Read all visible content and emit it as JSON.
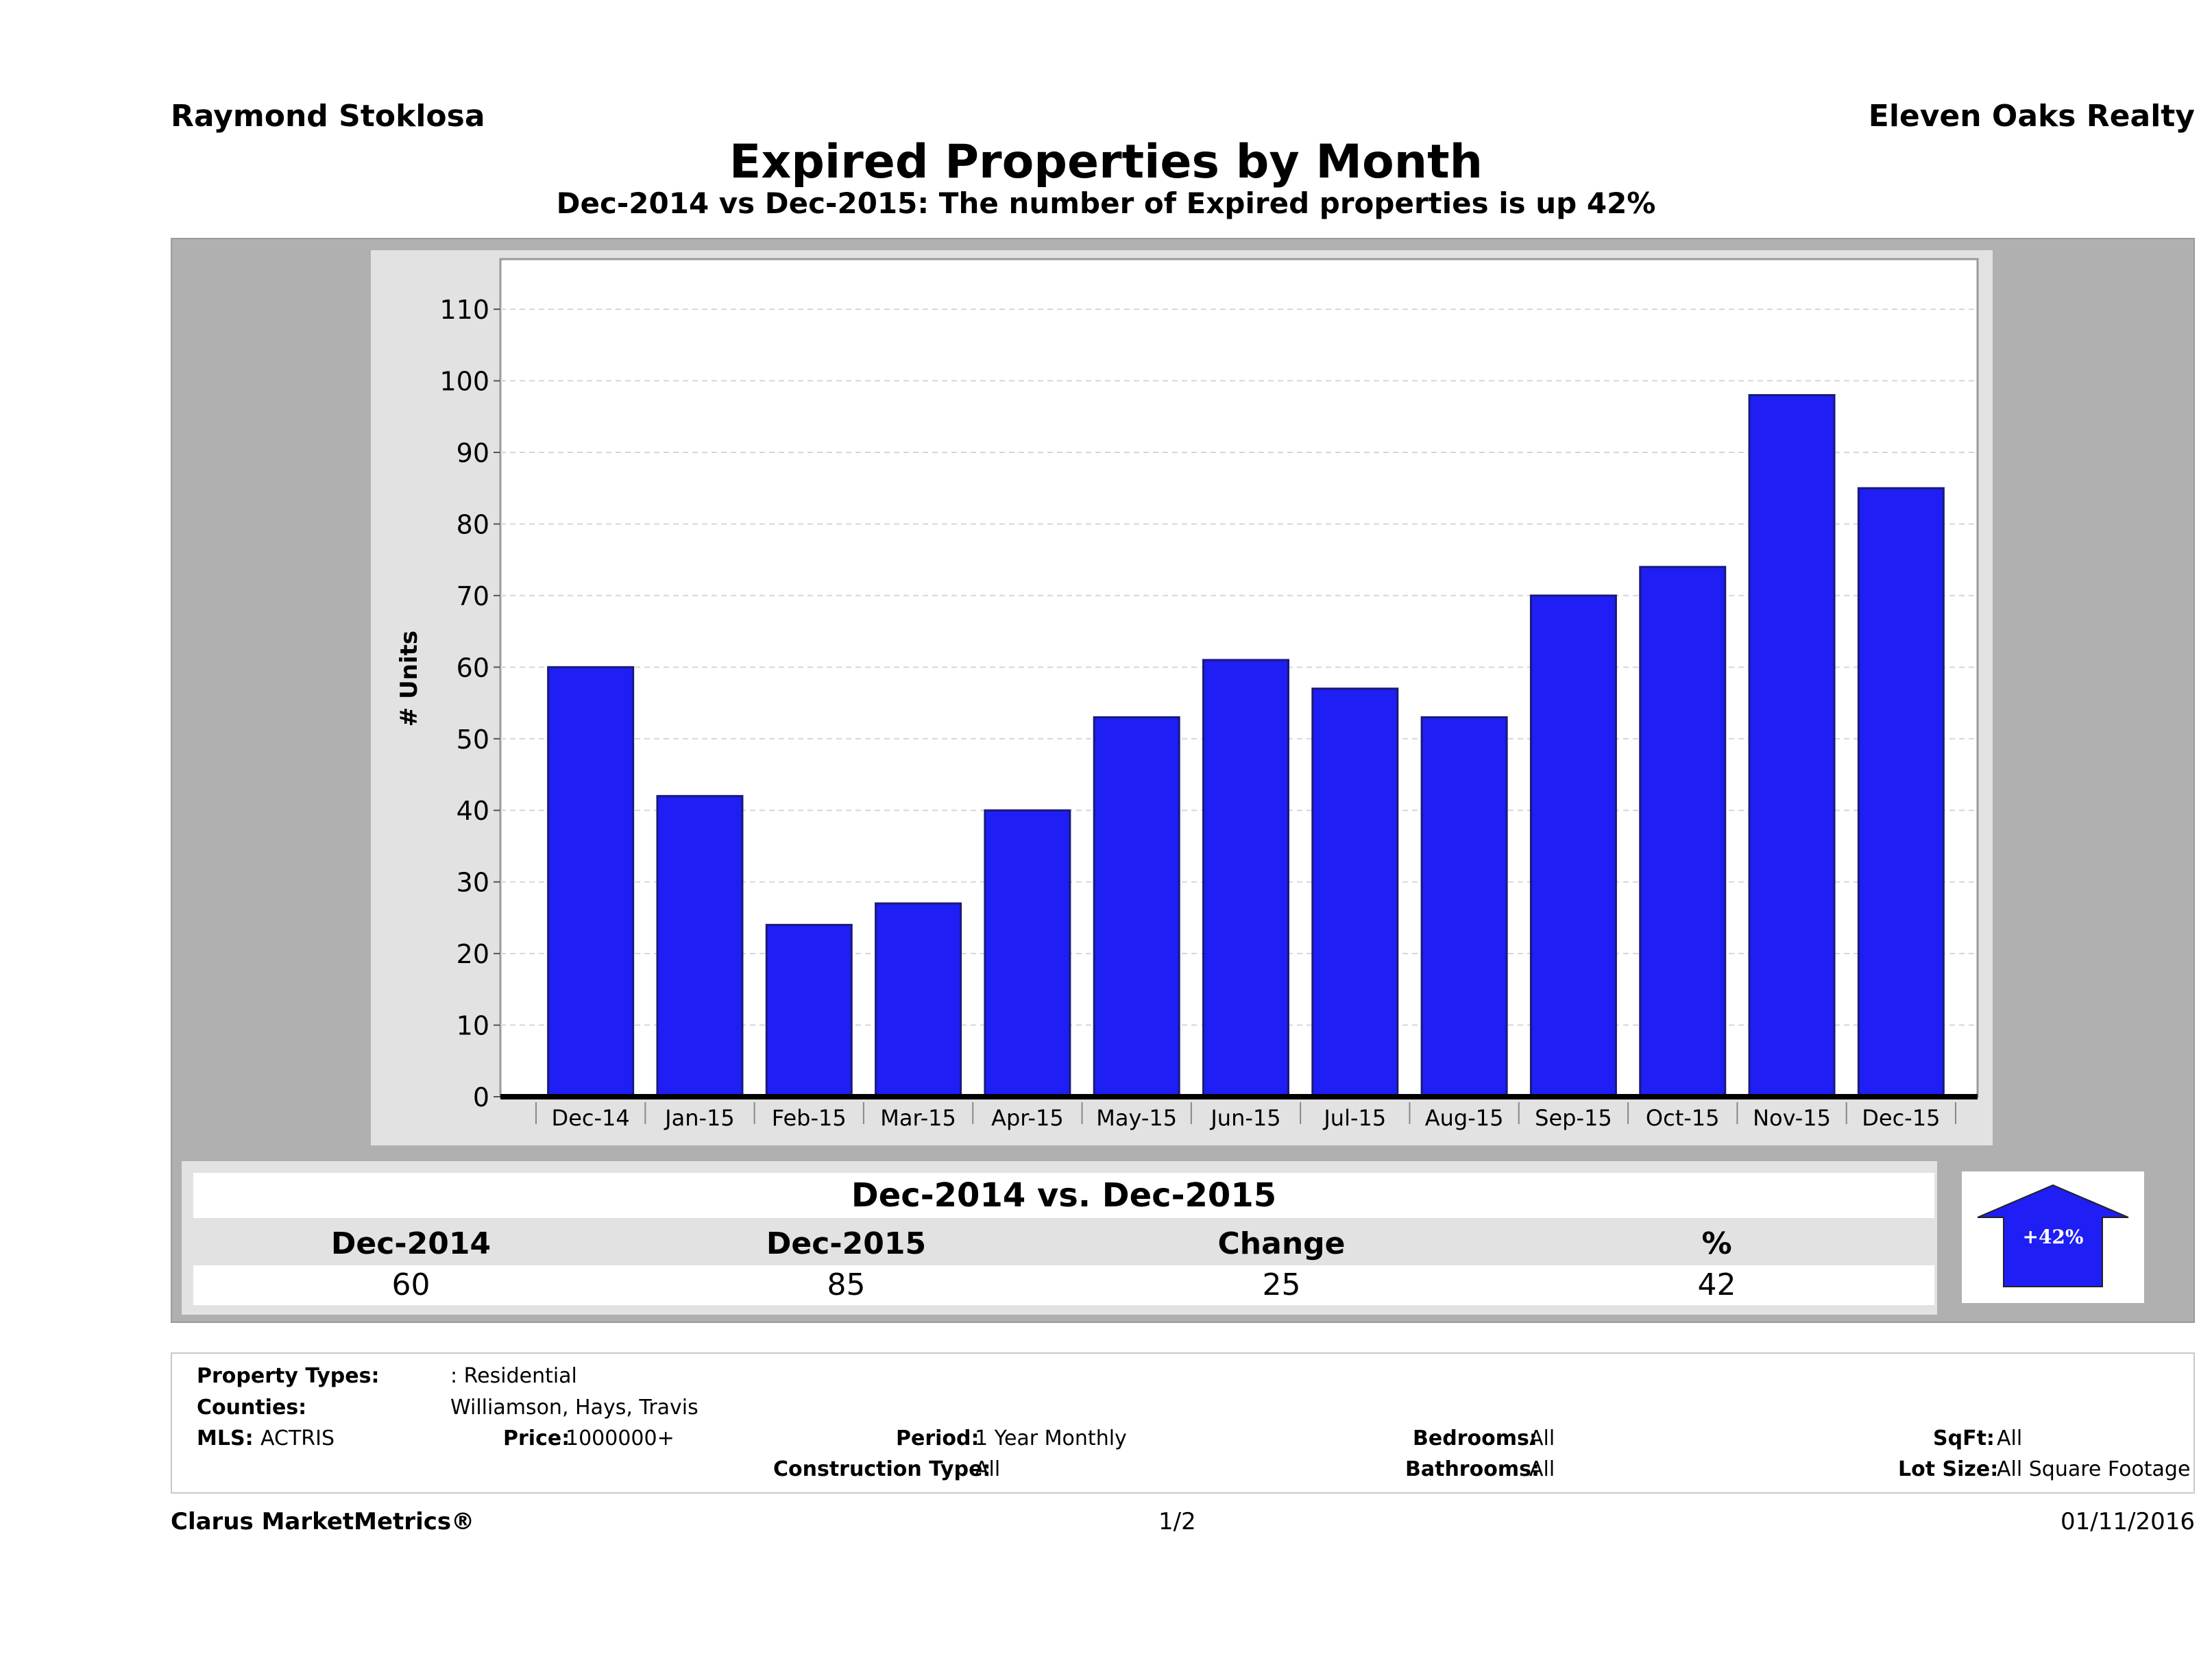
{
  "header": {
    "agent_name": "Raymond Stoklosa",
    "company": "Eleven Oaks Realty"
  },
  "chart_data": {
    "type": "bar",
    "title": "Expired Properties by Month",
    "subtitle": "Dec-2014 vs Dec-2015: The number of Expired  properties is up 42%",
    "xlabel": "",
    "ylabel": "# Units",
    "categories": [
      "Dec-14",
      "Jan-15",
      "Feb-15",
      "Mar-15",
      "Apr-15",
      "May-15",
      "Jun-15",
      "Jul-15",
      "Aug-15",
      "Sep-15",
      "Oct-15",
      "Nov-15",
      "Dec-15"
    ],
    "values": [
      60,
      42,
      24,
      27,
      40,
      53,
      61,
      57,
      53,
      70,
      74,
      98,
      85
    ],
    "yticks": [
      0,
      10,
      20,
      30,
      40,
      50,
      60,
      70,
      80,
      90,
      100,
      110
    ],
    "ylim": [
      0,
      117
    ],
    "grid": true,
    "bar_color": "#1e1ef5"
  },
  "comparison": {
    "title": "Dec-2014 vs. Dec-2015",
    "headers": [
      "Dec-2014",
      "Dec-2015",
      "Change",
      "%"
    ],
    "values": [
      "60",
      "85",
      "25",
      "42"
    ],
    "badge": "+42%",
    "arrow_color": "#1e1ef5"
  },
  "filters": {
    "property_types_label": "Property Types:",
    "property_types_value": ": Residential",
    "counties_label": "Counties:",
    "counties_value": "Williamson, Hays, Travis",
    "mls_label": "MLS:",
    "mls_value": "ACTRIS",
    "price_label": "Price:",
    "price_value": "1000000+",
    "period_label": "Period:",
    "period_value": "1 Year Monthly",
    "construction_label": "Construction Type:",
    "construction_value": "All",
    "bedrooms_label": "Bedrooms:",
    "bedrooms_value": "All",
    "bathrooms_label": "Bathrooms:",
    "bathrooms_value": "All",
    "sqft_label": "SqFt:",
    "sqft_value": "All",
    "lot_label": "Lot Size:",
    "lot_value": "All Square Footage"
  },
  "footer": {
    "brand": "Clarus MarketMetrics®",
    "page": "1/2",
    "date": "01/11/2016"
  }
}
